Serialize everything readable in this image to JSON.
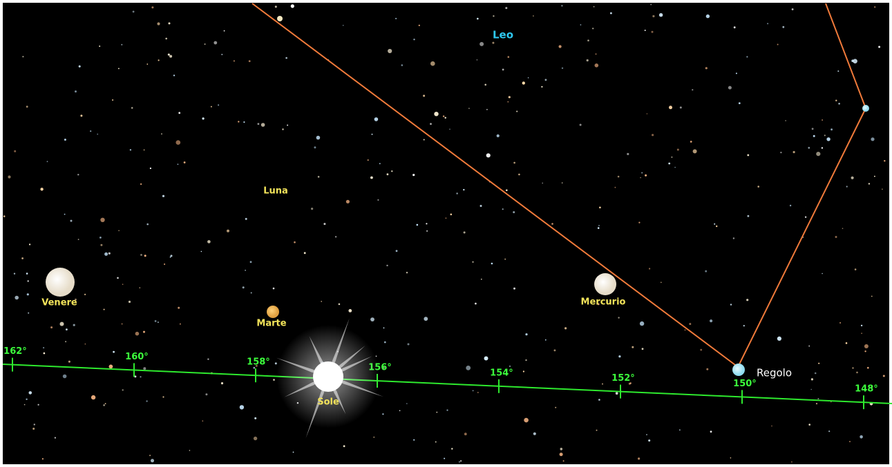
{
  "constellation": {
    "name": "Leo"
  },
  "bodies": [
    {
      "label": "Luna"
    },
    {
      "label": "Venere"
    },
    {
      "label": "Marte"
    },
    {
      "label": "Mercurio"
    },
    {
      "label": "Sole"
    }
  ],
  "star": {
    "label": "Regolo"
  },
  "ecliptic": {
    "ticks": [
      "162°",
      "160°",
      "158°",
      "156°",
      "154°",
      "152°",
      "150°",
      "148°"
    ]
  }
}
